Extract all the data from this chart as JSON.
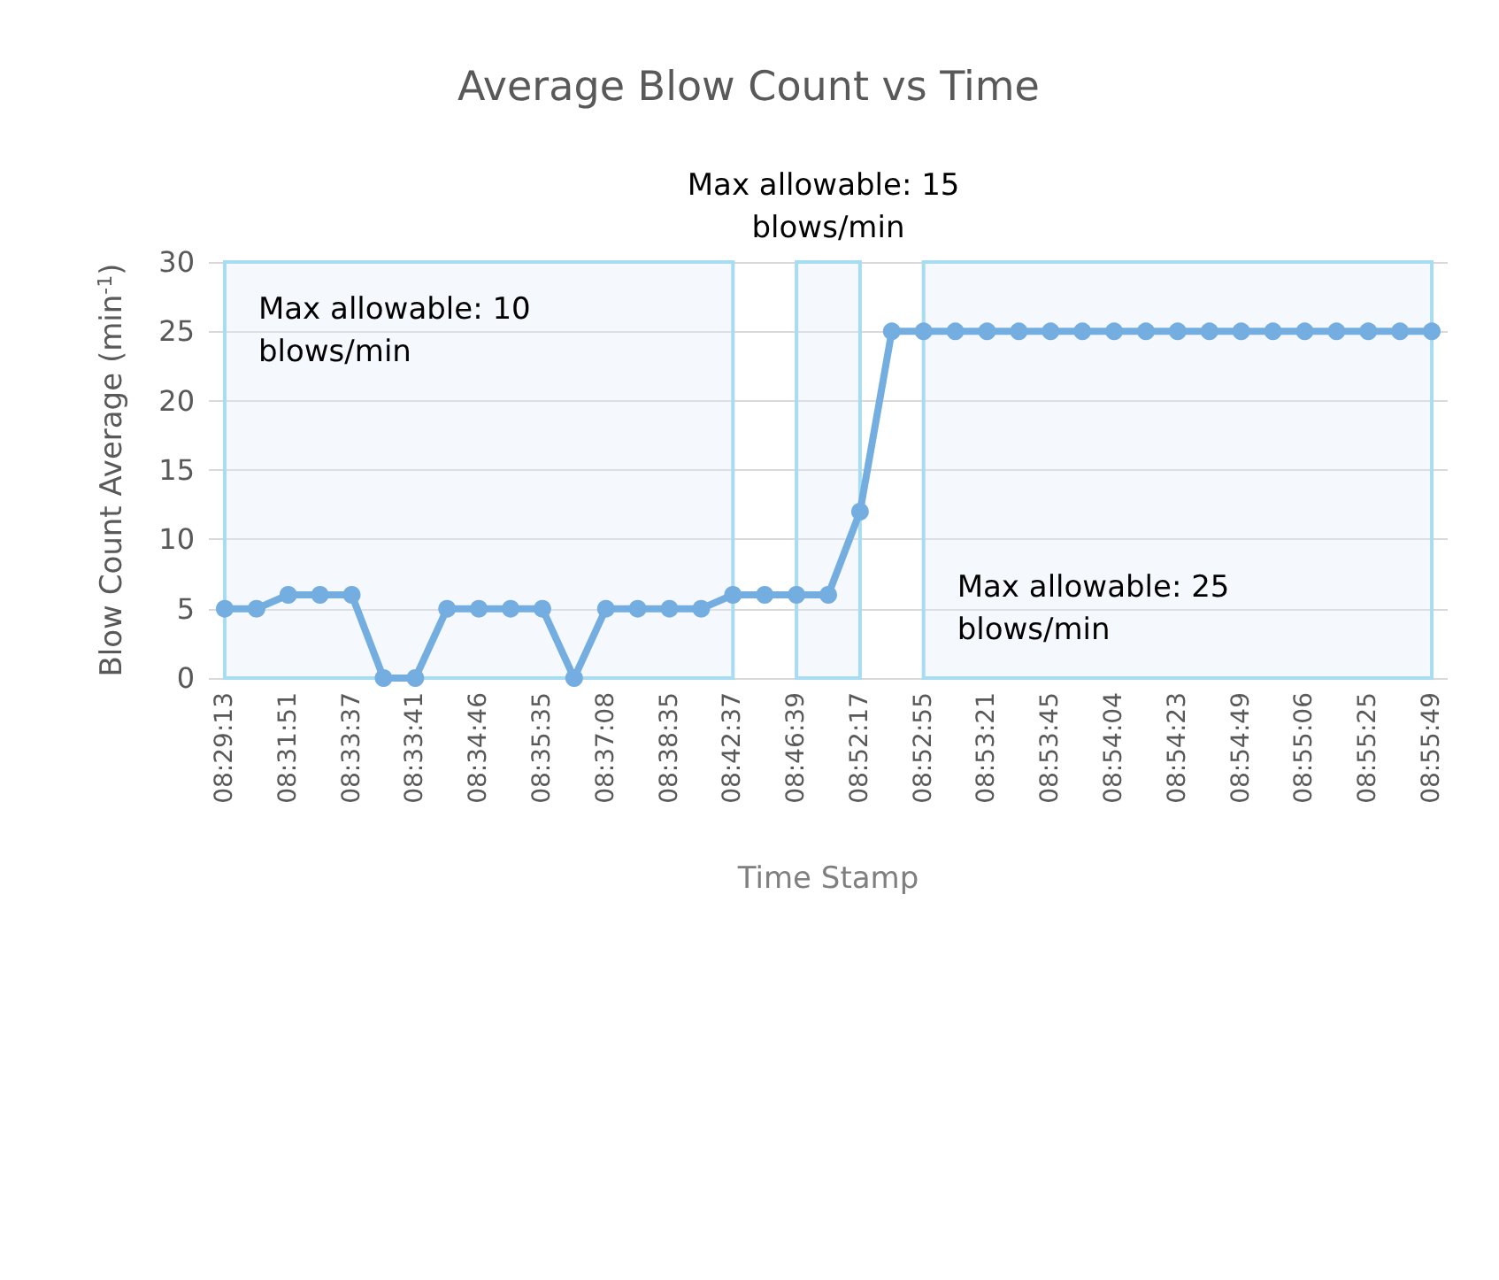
{
  "chart_data": {
    "type": "line",
    "title": "Average Blow Count vs Time",
    "xlabel": "Time Stamp",
    "ylabel": "Blow Count Average (min$^{-1}$)",
    "categories": [
      "08:29:13",
      null,
      "08:31:51",
      null,
      "08:33:37",
      null,
      "08:33:41",
      null,
      "08:34:46",
      null,
      "08:35:35",
      null,
      "08:37:08",
      null,
      "08:38:35",
      null,
      "08:42:37",
      null,
      "08:46:39",
      null,
      "08:52:17",
      null,
      "08:52:55",
      null,
      "08:53:21",
      null,
      "08:53:45",
      null,
      "08:54:04",
      null,
      "08:54:23",
      null,
      "08:54:49",
      null,
      "08:55:06",
      null,
      "08:55:25",
      null,
      "08:55:49"
    ],
    "series": [
      {
        "color": "#74aee0",
        "values": [
          5,
          5,
          6,
          6,
          6,
          0,
          0,
          5,
          5,
          5,
          5,
          0,
          5,
          5,
          5,
          5,
          6,
          6,
          6,
          6,
          12,
          25,
          25,
          25,
          25,
          25,
          25,
          25,
          25,
          25,
          25,
          25,
          25,
          25,
          25,
          25,
          25,
          25,
          25
        ]
      }
    ],
    "ylim": [
      0,
      30
    ],
    "yticks": [
      0,
      5,
      10,
      15,
      20,
      25,
      30
    ],
    "grid": "y",
    "marker": "circle",
    "line_style": "solid",
    "bands": [
      {
        "axis": "x",
        "from": "08:29:13",
        "to": "08:42:37",
        "label": "Max allowable: 10 blows/min",
        "color": "#a8dcf0"
      },
      {
        "axis": "x",
        "from": "08:46:39",
        "to": "08:52:17",
        "label": "Max allowable: 15 blows/min",
        "color": "#a8dcf0"
      },
      {
        "axis": "x",
        "from": "08:52:55",
        "to": "08:55:49",
        "label": "Max allowable: 25 blows/min",
        "color": "#a8dcf0"
      }
    ]
  }
}
